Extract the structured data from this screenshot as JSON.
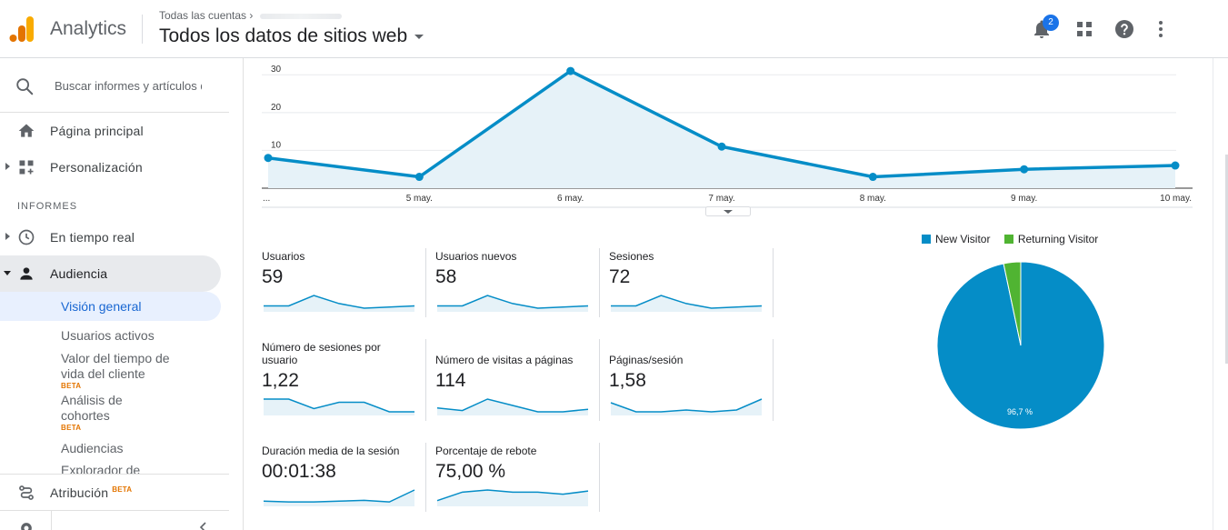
{
  "header": {
    "product_name": "Analytics",
    "breadcrumb": "Todas las cuentas",
    "view_title": "Todos los datos de sitios web",
    "notification_count": "2"
  },
  "sidebar": {
    "search_placeholder": "Buscar informes y artículos de ayuda",
    "home_label": "Página principal",
    "customization_label": "Personalización",
    "section_label": "INFORMES",
    "realtime_label": "En tiempo real",
    "audience_label": "Audiencia",
    "audience_items": [
      {
        "label": "Visión general",
        "active": true
      },
      {
        "label": "Usuarios activos"
      },
      {
        "label": "Valor del tiempo de vida del cliente",
        "beta": "BETA"
      },
      {
        "label": "Análisis de cohortes",
        "beta": "BETA"
      },
      {
        "label": "Audiencias"
      },
      {
        "label": "Explorador de"
      }
    ],
    "attribution_label": "Atribución",
    "attribution_beta": "BETA"
  },
  "chart_data": [
    {
      "type": "area",
      "x": [
        "...",
        "5 may.",
        "6 may.",
        "7 may.",
        "8 may.",
        "9 may.",
        "10 may."
      ],
      "values": [
        8,
        3,
        31,
        11,
        3,
        5,
        6
      ],
      "ylim": [
        0,
        30
      ],
      "yticks": [
        "10",
        "20",
        "30"
      ],
      "color": "#058dc7"
    },
    {
      "type": "pie",
      "labels": [
        "New Visitor",
        "Returning Visitor"
      ],
      "values": [
        96.7,
        3.3
      ],
      "colors": [
        "#058dc7",
        "#50b432"
      ],
      "slice_label": "96,7 %"
    }
  ],
  "metrics": [
    {
      "label": "Usuarios",
      "value": "59",
      "spark": [
        2,
        2,
        11,
        4,
        0,
        1,
        2
      ]
    },
    {
      "label": "Usuarios nuevos",
      "value": "58",
      "spark": [
        2,
        2,
        11,
        4,
        0,
        1,
        2
      ]
    },
    {
      "label": "Sesiones",
      "value": "72",
      "spark": [
        2,
        2,
        11,
        4,
        0,
        1,
        2
      ]
    },
    {
      "label": "Número de sesiones por usuario",
      "value": "1,22",
      "spark": [
        4,
        4,
        1,
        3,
        3,
        0,
        0
      ]
    },
    {
      "label": "Número de visitas a páginas",
      "value": "114",
      "spark": [
        3,
        1,
        10,
        5,
        0,
        0,
        2
      ]
    },
    {
      "label": "Páginas/sesión",
      "value": "1,58",
      "spark": [
        5,
        0,
        0,
        1,
        0,
        1,
        7
      ]
    },
    {
      "label": "Duración media de la sesión",
      "value": "00:01:38",
      "spark": [
        2,
        1,
        1,
        2,
        3,
        1,
        16
      ]
    },
    {
      "label": "Porcentaje de rebote",
      "value": "75,00 %",
      "spark": [
        2,
        10,
        12,
        10,
        10,
        8,
        11
      ]
    }
  ],
  "colors": {
    "accent": "#058dc7",
    "returning": "#50b432",
    "active_nav": "#1967d2"
  }
}
